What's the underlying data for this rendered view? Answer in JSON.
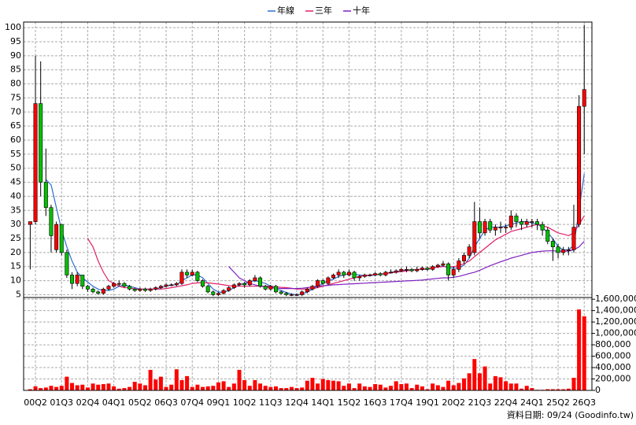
{
  "chart_data": {
    "type": "candlestick",
    "categories": [
      null,
      "00Q2",
      null,
      null,
      null,
      null,
      "01Q3",
      null,
      null,
      null,
      null,
      "02Q4",
      null,
      null,
      null,
      null,
      "04Q1",
      null,
      null,
      null,
      null,
      "05Q2",
      null,
      null,
      null,
      null,
      "06Q3",
      null,
      null,
      null,
      null,
      "07Q4",
      null,
      null,
      null,
      null,
      "09Q1",
      null,
      null,
      null,
      null,
      "10Q2",
      null,
      null,
      null,
      null,
      "11Q3",
      null,
      null,
      null,
      null,
      "12Q4",
      null,
      null,
      null,
      null,
      "14Q1",
      null,
      null,
      null,
      null,
      "15Q2",
      null,
      null,
      null,
      null,
      "16Q3",
      null,
      null,
      null,
      null,
      "17Q4",
      null,
      null,
      null,
      null,
      "19Q1",
      null,
      null,
      null,
      null,
      "20Q2",
      null,
      null,
      null,
      null,
      "21Q3",
      null,
      null,
      null,
      null,
      "22Q4",
      null,
      null,
      null,
      null,
      "24Q1",
      null,
      null,
      null,
      null,
      "25Q2",
      null,
      null,
      null,
      null,
      "26Q3"
    ],
    "open": [
      30,
      31,
      73,
      45,
      36,
      21,
      30,
      20,
      12,
      9,
      12,
      8,
      7,
      6,
      5.5,
      7,
      8,
      9,
      9,
      8,
      7,
      6.5,
      7,
      6.5,
      7,
      7.5,
      8,
      8.5,
      8.5,
      9,
      13,
      12,
      13,
      10,
      8,
      6,
      5,
      5.5,
      6.5,
      7.5,
      8.5,
      9,
      8.5,
      10,
      11,
      8,
      7,
      8,
      6,
      5.5,
      5,
      5,
      5,
      6,
      7,
      8,
      10,
      9,
      11,
      12,
      13,
      12,
      13,
      11,
      11.5,
      12,
      12,
      12.5,
      12,
      13,
      13,
      13.5,
      14,
      14,
      13.5,
      14,
      14.5,
      14,
      15,
      15.5,
      16,
      12,
      14,
      17,
      19,
      20,
      31,
      27,
      31,
      28,
      29,
      29,
      29,
      33,
      31,
      30,
      31,
      31,
      30,
      28,
      24,
      22,
      20,
      21,
      21,
      30,
      72
    ],
    "high": [
      31,
      90,
      88,
      57,
      37,
      31,
      30,
      21,
      13,
      13,
      12,
      8.5,
      7.5,
      6.5,
      7.5,
      8.5,
      9.5,
      10,
      9.5,
      8.5,
      7.5,
      7.5,
      7.5,
      7.5,
      8,
      8.5,
      9,
      9,
      9.5,
      14,
      14,
      14,
      13.5,
      10.5,
      8.5,
      6.5,
      6,
      7,
      8,
      9,
      9.5,
      9.5,
      10.5,
      12,
      11.5,
      8.5,
      8.5,
      8.5,
      6.5,
      6,
      5.5,
      5.5,
      6.5,
      7.5,
      8.5,
      10.5,
      10.5,
      11.5,
      12.5,
      14,
      13.5,
      14,
      13.5,
      12,
      12.5,
      12.5,
      13,
      13,
      13.5,
      14,
      14,
      14.5,
      15,
      14.5,
      15,
      15,
      15,
      15.5,
      16,
      17,
      16.5,
      15,
      18,
      20,
      23,
      38,
      36,
      32,
      32,
      30,
      31,
      30,
      35,
      34,
      32,
      32,
      32,
      32,
      31,
      29,
      25,
      23,
      22,
      22,
      37,
      76,
      101
    ],
    "low": [
      14,
      30,
      40,
      33,
      20,
      20,
      19,
      11,
      7,
      8,
      7,
      6,
      5.5,
      5,
      5,
      6.5,
      7.5,
      8,
      7.5,
      6.5,
      6,
      6,
      6,
      6,
      6.5,
      7,
      7.5,
      8,
      8,
      8.5,
      11,
      11.5,
      9.5,
      7.5,
      5.5,
      4.5,
      4.5,
      5,
      6,
      7,
      8,
      7.5,
      8,
      9.5,
      7.5,
      6.5,
      6.5,
      5.5,
      5,
      4.5,
      4.5,
      4.5,
      4.5,
      5.5,
      6.5,
      7.5,
      8.5,
      8.5,
      10.5,
      11,
      11,
      11.5,
      10,
      10,
      11,
      11.5,
      11.5,
      11.5,
      11.5,
      12.5,
      12.5,
      13,
      13,
      13,
      13,
      13.5,
      13.5,
      13.5,
      14.5,
      15,
      10,
      11,
      13,
      16,
      18,
      19,
      25,
      26,
      27,
      26,
      27,
      27,
      28,
      29,
      28,
      29,
      29,
      28,
      26,
      23,
      17,
      18,
      19,
      19,
      20,
      29,
      55
    ],
    "close": [
      31,
      73,
      45,
      36,
      26,
      30,
      20,
      12,
      9,
      12,
      8,
      7,
      6,
      5.5,
      7,
      8,
      9,
      9,
      8,
      7,
      6.5,
      7,
      6.5,
      7,
      7.5,
      8,
      8.5,
      8.5,
      9,
      13,
      12,
      13,
      10,
      8,
      6,
      5,
      5.5,
      6.5,
      7.5,
      8.5,
      9,
      8.5,
      10,
      11,
      8,
      7,
      8,
      6,
      5.5,
      5,
      5,
      5,
      6,
      7,
      8,
      10,
      9,
      11,
      12,
      13,
      12,
      13,
      11,
      11.5,
      12,
      12,
      12.5,
      12,
      13,
      13,
      13.5,
      14,
      14,
      13.5,
      14,
      14.5,
      14,
      15,
      15.5,
      16,
      12,
      14,
      17,
      19,
      22,
      31,
      27,
      31,
      28,
      29,
      29,
      29,
      33,
      31,
      30,
      31,
      31,
      30,
      28,
      24,
      22,
      20,
      21,
      21,
      29,
      72,
      78
    ],
    "up_color": "#ff0000",
    "down_color": "#00c000",
    "series": [
      {
        "name": "年線",
        "color": "#2f6fd0",
        "values": [
          null,
          null,
          null,
          46,
          44,
          36,
          28,
          22,
          17,
          13,
          11,
          9.5,
          8,
          7,
          6.5,
          6.5,
          7,
          8,
          8.5,
          8,
          7.5,
          7,
          7,
          7,
          7,
          7.5,
          8,
          8.5,
          8.5,
          10,
          11,
          12,
          12,
          11,
          9,
          7,
          6,
          5.8,
          6.5,
          7.5,
          8.5,
          9,
          9.5,
          10,
          9.5,
          9,
          8,
          7,
          6.5,
          5.8,
          5.2,
          5,
          5.2,
          6,
          7,
          8,
          9,
          10,
          10.5,
          11.5,
          12,
          12.5,
          12.2,
          12,
          11.8,
          11.8,
          12,
          12.3,
          12.5,
          13,
          13.2,
          13.5,
          13.8,
          13.8,
          14,
          14,
          14,
          14.5,
          15,
          15.2,
          14.5,
          14.5,
          14.5,
          15.5,
          18,
          22,
          25,
          28,
          29,
          29,
          29,
          29.5,
          30,
          30.5,
          31,
          31,
          30.5,
          30,
          29,
          27,
          25,
          22,
          21,
          21,
          22.5,
          35,
          48
        ]
      },
      {
        "name": "三年",
        "color": "#e0206a",
        "values": [
          null,
          null,
          null,
          null,
          null,
          null,
          null,
          null,
          null,
          null,
          null,
          25,
          22,
          17,
          13,
          10,
          9,
          8,
          7.5,
          7.5,
          7,
          7,
          7,
          7,
          7,
          7,
          7.2,
          7.5,
          7.8,
          8.2,
          8.5,
          9,
          9.2,
          9.3,
          9.2,
          9,
          8.8,
          8.5,
          8.2,
          8,
          8,
          8,
          8,
          8,
          8,
          8,
          8,
          7.8,
          7.6,
          7.5,
          7.3,
          7,
          7,
          7,
          7.2,
          7.5,
          8,
          8.5,
          9,
          9.5,
          10,
          10.5,
          11,
          11.5,
          11.8,
          12,
          12.2,
          12.3,
          12.5,
          12.8,
          13,
          13.2,
          13.5,
          13.7,
          14,
          14,
          14.2,
          14.5,
          14.8,
          15,
          15,
          15,
          15.3,
          16,
          17,
          18.5,
          20,
          21.5,
          23,
          24.5,
          25.5,
          26.5,
          27.5,
          28,
          28.5,
          29,
          29.5,
          30,
          29.5,
          29,
          28,
          27,
          26.5,
          26,
          27,
          30,
          33
        ]
      },
      {
        "name": "十年",
        "color": "#8020c0",
        "values": [
          null,
          null,
          null,
          null,
          null,
          null,
          null,
          null,
          null,
          null,
          null,
          null,
          null,
          null,
          null,
          null,
          null,
          null,
          null,
          null,
          null,
          null,
          null,
          null,
          null,
          null,
          null,
          null,
          null,
          null,
          null,
          null,
          null,
          null,
          null,
          null,
          null,
          null,
          15,
          13,
          11,
          10,
          9,
          8.5,
          8,
          7.8,
          7.5,
          7.3,
          7.2,
          7.2,
          7.2,
          7.2,
          7.3,
          7.5,
          7.8,
          8,
          8.2,
          8.3,
          8.5,
          8.6,
          8.7,
          8.8,
          8.9,
          9,
          9.1,
          9.2,
          9.3,
          9.4,
          9.5,
          9.6,
          9.7,
          9.8,
          9.9,
          10,
          10.1,
          10.2,
          10.4,
          10.6,
          10.8,
          11,
          11,
          11.2,
          11.5,
          12,
          12.5,
          13,
          13.7,
          14.5,
          15.3,
          16,
          16.7,
          17.3,
          18,
          18.5,
          19,
          19.5,
          20,
          20.3,
          20.5,
          20.6,
          20.6,
          20.5,
          20.5,
          20.5,
          21,
          22,
          24
        ]
      }
    ],
    "volume": {
      "color": "#ff0000",
      "values": [
        20000,
        70000,
        40000,
        50000,
        80000,
        60000,
        80000,
        240000,
        130000,
        90000,
        100000,
        50000,
        120000,
        100000,
        110000,
        120000,
        70000,
        30000,
        40000,
        60000,
        150000,
        120000,
        90000,
        360000,
        190000,
        240000,
        60000,
        100000,
        370000,
        180000,
        250000,
        60000,
        100000,
        60000,
        70000,
        80000,
        140000,
        160000,
        60000,
        120000,
        360000,
        180000,
        80000,
        180000,
        120000,
        80000,
        60000,
        70000,
        40000,
        40000,
        60000,
        40000,
        50000,
        170000,
        220000,
        120000,
        200000,
        180000,
        170000,
        160000,
        80000,
        120000,
        40000,
        120000,
        70000,
        60000,
        110000,
        100000,
        50000,
        80000,
        160000,
        110000,
        120000,
        40000,
        100000,
        70000,
        20000,
        120000,
        90000,
        60000,
        170000,
        90000,
        130000,
        210000,
        300000,
        550000,
        300000,
        420000,
        120000,
        250000,
        230000,
        160000,
        120000,
        120000,
        30000,
        80000,
        40000,
        10000,
        10000,
        20000,
        20000,
        20000,
        20000,
        30000,
        220000,
        1420000,
        1300000
      ],
      "ylim": [
        0,
        1630000
      ],
      "yticks": [
        0,
        {
          "value": 200000,
          "label": "200,000"
        },
        {
          "value": 400000,
          "label": "400,000"
        },
        {
          "value": 600000,
          "label": "600,000"
        },
        {
          "value": 800000,
          "label": "800,000"
        },
        {
          "value": 1000000,
          "label": "1,000,000"
        },
        {
          "value": 1200000,
          "label": "1,200,000"
        },
        {
          "value": 1400000,
          "label": "1,400,000"
        },
        {
          "value": 1600000,
          "label": "1,600,000"
        }
      ]
    },
    "ylim": [
      4,
      102
    ],
    "yticks": [
      5,
      10,
      15,
      20,
      25,
      30,
      35,
      40,
      45,
      50,
      55,
      60,
      65,
      70,
      75,
      80,
      85,
      90,
      95,
      100
    ],
    "grid": true,
    "legend": "top"
  },
  "note": "資料日期: 09/24 (Goodinfo.tw)"
}
